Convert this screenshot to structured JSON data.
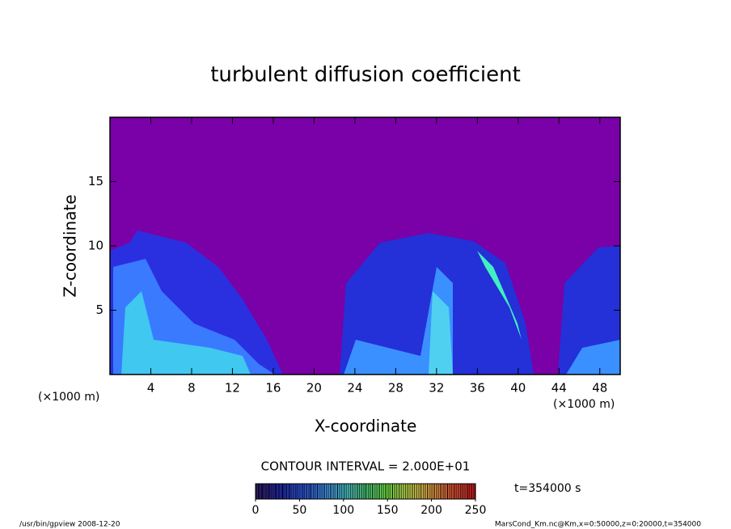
{
  "chart_data": {
    "type": "heatmap",
    "title": "turbulent diffusion coefficient",
    "x_label": "X-coordinate",
    "y_label": "Z-coordinate",
    "x_unit_label": "(×1000 m)",
    "xlim": [
      0,
      50
    ],
    "ylim": [
      0,
      20
    ],
    "xticks": [
      4,
      8,
      12,
      16,
      20,
      24,
      28,
      32,
      36,
      40,
      44,
      48
    ],
    "yticks": [
      5,
      10,
      15
    ],
    "background_color": "#7a00a8",
    "contour_interval_label": "CONTOUR INTERVAL = 2.000E+01",
    "time_label": "t=354000 s",
    "colorbar": {
      "lim": [
        0,
        250
      ],
      "ticks": [
        0,
        50,
        100,
        150,
        200,
        250
      ],
      "colors": [
        "#1a0060",
        "#0a0aa0",
        "#1030e0",
        "#2060ff",
        "#30a0ff",
        "#40e0e0",
        "#40e080",
        "#60ff40",
        "#c0ff40",
        "#ffe040",
        "#ff9030",
        "#ff4020",
        "#e00000"
      ]
    }
  },
  "footer": {
    "left": "/usr/bin/gpview   2008-12-20",
    "right": "MarsCond_Km.nc@Km,x=0:50000,z=0:20000,t=354000"
  }
}
